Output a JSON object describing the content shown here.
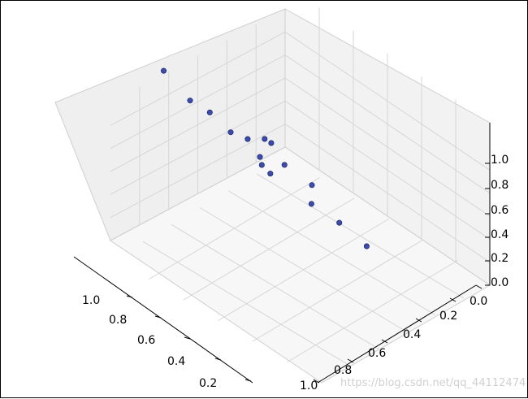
{
  "chart_data": {
    "type": "scatter3d",
    "title": "",
    "xlabel": "",
    "ylabel": "",
    "zlabel": "",
    "xlim": [
      0.1,
      1.2
    ],
    "ylim": [
      0.0,
      1.2
    ],
    "zlim": [
      0.0,
      1.2
    ],
    "grid": true,
    "x_ticks": [
      "0.2",
      "0.4",
      "0.6",
      "0.8",
      "1.0"
    ],
    "y_ticks": [
      "0.2",
      "0.4",
      "0.6",
      "0.8",
      "1.0"
    ],
    "z_ticks": [
      "0.0",
      "0.2",
      "0.4",
      "0.6",
      "0.8",
      "1.0"
    ],
    "y_ticks_extra": [
      "0.0"
    ],
    "marker_color": "#1f2f9a",
    "points": [
      {
        "x": 1.06,
        "y": 0.16,
        "z": 1.1
      },
      {
        "x": 0.95,
        "y": 0.2,
        "z": 0.98
      },
      {
        "x": 0.86,
        "y": 0.22,
        "z": 0.96
      },
      {
        "x": 0.84,
        "y": 0.34,
        "z": 0.8
      },
      {
        "x": 0.78,
        "y": 0.38,
        "z": 0.78
      },
      {
        "x": 0.72,
        "y": 0.42,
        "z": 0.8
      },
      {
        "x": 0.7,
        "y": 0.44,
        "z": 0.78
      },
      {
        "x": 0.76,
        "y": 0.44,
        "z": 0.66
      },
      {
        "x": 0.75,
        "y": 0.44,
        "z": 0.62
      },
      {
        "x": 0.66,
        "y": 0.48,
        "z": 0.66
      },
      {
        "x": 0.72,
        "y": 0.46,
        "z": 0.58
      },
      {
        "x": 0.62,
        "y": 0.62,
        "z": 0.5
      },
      {
        "x": 0.63,
        "y": 0.63,
        "z": 0.38
      },
      {
        "x": 0.58,
        "y": 0.76,
        "z": 0.24
      },
      {
        "x": 0.48,
        "y": 0.82,
        "z": 0.14
      }
    ]
  },
  "watermark": "https://blog.csdn.net/qq_44112474"
}
